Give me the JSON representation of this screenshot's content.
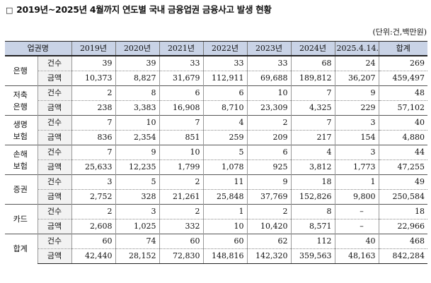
{
  "title": {
    "marker": "□",
    "text": "2019년~2025년 4월까지 연도별 국내 금융업권 금융사고 발생 현황"
  },
  "unit": "(단위:건,백만원)",
  "table": {
    "headers": [
      "업권명",
      "2019년",
      "2020년",
      "2021년",
      "2022년",
      "2023년",
      "2024년",
      "2025.4.14.",
      "합계"
    ],
    "groups": [
      {
        "name": "은행",
        "sub_count": "건수",
        "sub_amount": "금액",
        "count": [
          "39",
          "39",
          "33",
          "33",
          "33",
          "68",
          "24",
          "269"
        ],
        "amount": [
          "10,373",
          "8,827",
          "31,679",
          "112,911",
          "69,688",
          "189,812",
          "36,207",
          "459,497"
        ]
      },
      {
        "name": "저축\n은행",
        "sub_count": "건수",
        "sub_amount": "금액",
        "count": [
          "2",
          "8",
          "6",
          "6",
          "10",
          "7",
          "9",
          "48"
        ],
        "amount": [
          "238",
          "3,383",
          "16,908",
          "8,710",
          "23,309",
          "4,325",
          "229",
          "57,102"
        ]
      },
      {
        "name": "생명\n보험",
        "sub_count": "건수",
        "sub_amount": "금액",
        "count": [
          "7",
          "10",
          "7",
          "4",
          "2",
          "7",
          "3",
          "40"
        ],
        "amount": [
          "836",
          "2,354",
          "851",
          "259",
          "209",
          "217",
          "154",
          "4,880"
        ]
      },
      {
        "name": "손해\n보험",
        "sub_count": "건수",
        "sub_amount": "금액",
        "count": [
          "7",
          "9",
          "10",
          "5",
          "6",
          "4",
          "3",
          "44"
        ],
        "amount": [
          "25,633",
          "12,235",
          "1,799",
          "1,078",
          "925",
          "3,812",
          "1,773",
          "47,255"
        ]
      },
      {
        "name": "증권",
        "sub_count": "건수",
        "sub_amount": "금액",
        "count": [
          "3",
          "5",
          "2",
          "11",
          "9",
          "18",
          "1",
          "49"
        ],
        "amount": [
          "2,752",
          "328",
          "21,261",
          "25,848",
          "37,769",
          "152,826",
          "9,800",
          "250,584"
        ]
      },
      {
        "name": "카드",
        "sub_count": "건수",
        "sub_amount": "금액",
        "count": [
          "2",
          "3",
          "2",
          "1",
          "2",
          "8",
          "–",
          "18"
        ],
        "amount": [
          "2,608",
          "1,025",
          "332",
          "10",
          "10,420",
          "8,571",
          "–",
          "22,966"
        ]
      },
      {
        "name": "합계",
        "sub_count": "건수",
        "sub_amount": "금액",
        "count": [
          "60",
          "74",
          "60",
          "60",
          "62",
          "112",
          "40",
          "468"
        ],
        "amount": [
          "42,440",
          "28,152",
          "72,830",
          "148,816",
          "142,320",
          "359,563",
          "48,163",
          "842,284"
        ]
      }
    ]
  },
  "colors": {
    "header_bg": "#c9d3e6",
    "sub_bg": "#f2f2f2"
  }
}
